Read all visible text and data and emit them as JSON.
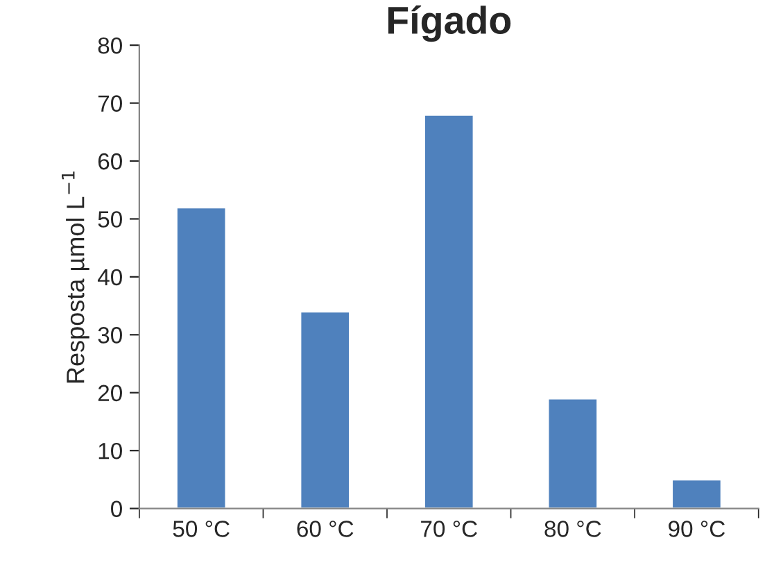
{
  "chart_data": {
    "type": "bar",
    "title": "Fígado",
    "ylabel": "Resposta µmol L$^{−1}$",
    "categories": [
      "50 °C",
      "60 °C",
      "70 °C",
      "80 °C",
      "90 °C"
    ],
    "values": [
      52,
      34,
      68,
      19,
      5
    ],
    "color": "#4f81bd",
    "ylim": [
      0,
      80
    ],
    "yticks": [
      0,
      10,
      20,
      30,
      40,
      50,
      60,
      70,
      80
    ],
    "grid": false,
    "legend": false
  }
}
